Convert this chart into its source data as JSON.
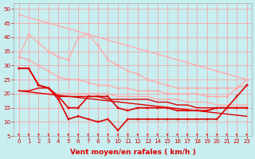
{
  "xlabel": "Vent moyen/en rafales ( km/h )",
  "background_color": "#c8eef0",
  "grid_color": "#ff9999",
  "xlim": [
    -0.5,
    23.5
  ],
  "ylim": [
    5,
    52
  ],
  "yticks": [
    5,
    10,
    15,
    20,
    25,
    30,
    35,
    40,
    45,
    50
  ],
  "xticks": [
    0,
    1,
    2,
    3,
    4,
    5,
    6,
    7,
    8,
    9,
    10,
    11,
    12,
    13,
    14,
    15,
    16,
    17,
    18,
    19,
    20,
    21,
    22,
    23
  ],
  "series": [
    {
      "x": [
        0,
        23
      ],
      "y": [
        48,
        25
      ],
      "color": "#ffaaaa",
      "marker": null,
      "linewidth": 1.0
    },
    {
      "x": [
        0,
        1,
        2,
        3,
        4,
        5,
        6,
        7,
        8,
        9,
        10,
        11,
        12,
        13,
        14,
        15,
        16,
        17,
        18,
        19,
        20,
        21,
        22,
        23
      ],
      "y": [
        33,
        41,
        38,
        35,
        33,
        32,
        40,
        41,
        37,
        32,
        30,
        28,
        27,
        25,
        24,
        23,
        22,
        22,
        22,
        22,
        22,
        22,
        22,
        25
      ],
      "color": "#ffaaaa",
      "marker": "o",
      "markersize": 2.0,
      "linewidth": 1.0
    },
    {
      "x": [
        0,
        1,
        2,
        3,
        4,
        5,
        6,
        7,
        8,
        9,
        10,
        11,
        12,
        13,
        14,
        15,
        16,
        17,
        18,
        19,
        20,
        21,
        22,
        23
      ],
      "y": [
        33,
        32,
        30,
        28,
        26,
        25,
        25,
        24,
        23,
        23,
        22,
        22,
        21,
        21,
        21,
        20,
        20,
        20,
        20,
        19,
        19,
        19,
        22,
        23
      ],
      "color": "#ffaaaa",
      "marker": "o",
      "markersize": 2.0,
      "linewidth": 1.0
    },
    {
      "x": [
        0,
        1,
        2,
        3,
        4,
        5,
        6,
        7,
        8,
        9,
        10,
        11,
        12,
        13,
        14,
        15,
        16,
        17,
        18,
        19,
        20,
        21,
        22,
        23
      ],
      "y": [
        21,
        21,
        20,
        20,
        20,
        20,
        20,
        20,
        20,
        20,
        19,
        19,
        19,
        19,
        18,
        18,
        18,
        17,
        17,
        17,
        16,
        16,
        16,
        16
      ],
      "color": "#ffaaaa",
      "marker": null,
      "linewidth": 1.0
    },
    {
      "x": [
        0,
        1,
        2,
        3,
        4,
        5,
        6,
        7,
        8,
        9,
        10,
        11,
        12,
        13,
        14,
        15,
        16,
        17,
        18,
        19,
        20,
        21,
        22,
        23
      ],
      "y": [
        29,
        29,
        23,
        22,
        19,
        15,
        15,
        19,
        19,
        19,
        15,
        14,
        15,
        15,
        15,
        15,
        14,
        14,
        14,
        14,
        15,
        15,
        19,
        23
      ],
      "color": "#dd0000",
      "marker": "s",
      "markersize": 2.0,
      "linewidth": 1.2
    },
    {
      "x": [
        0,
        1,
        2,
        3,
        4,
        5,
        6,
        7,
        8,
        9,
        10,
        11,
        12,
        13,
        14,
        15,
        16,
        17,
        18,
        19,
        20,
        21,
        22,
        23
      ],
      "y": [
        21,
        21,
        22,
        22,
        19,
        19,
        19,
        19,
        19,
        18,
        18,
        18,
        18,
        18,
        17,
        17,
        16,
        16,
        15,
        15,
        15,
        15,
        15,
        15
      ],
      "color": "#dd0000",
      "marker": null,
      "linewidth": 1.0
    },
    {
      "x": [
        0,
        1,
        2,
        3,
        4,
        5,
        6,
        7,
        8,
        9,
        10,
        11,
        12,
        13,
        14,
        15,
        16,
        17,
        18,
        19,
        20,
        21,
        22,
        23
      ],
      "y": [
        29,
        29,
        23,
        22,
        18,
        11,
        12,
        11,
        10,
        11,
        7,
        11,
        11,
        11,
        11,
        11,
        11,
        11,
        11,
        11,
        11,
        15,
        15,
        15
      ],
      "color": "#dd0000",
      "marker": "s",
      "markersize": 2.0,
      "linewidth": 1.2
    },
    {
      "x": [
        0,
        23
      ],
      "y": [
        21,
        12
      ],
      "color": "#dd0000",
      "marker": null,
      "linewidth": 1.0
    }
  ],
  "arrow_color": "#dd0000",
  "tick_fontsize": 5,
  "xlabel_fontsize": 6.5,
  "xlabel_color": "#dd0000",
  "tick_label_color": "#cc0000",
  "ylabel_color": "#cc0000"
}
